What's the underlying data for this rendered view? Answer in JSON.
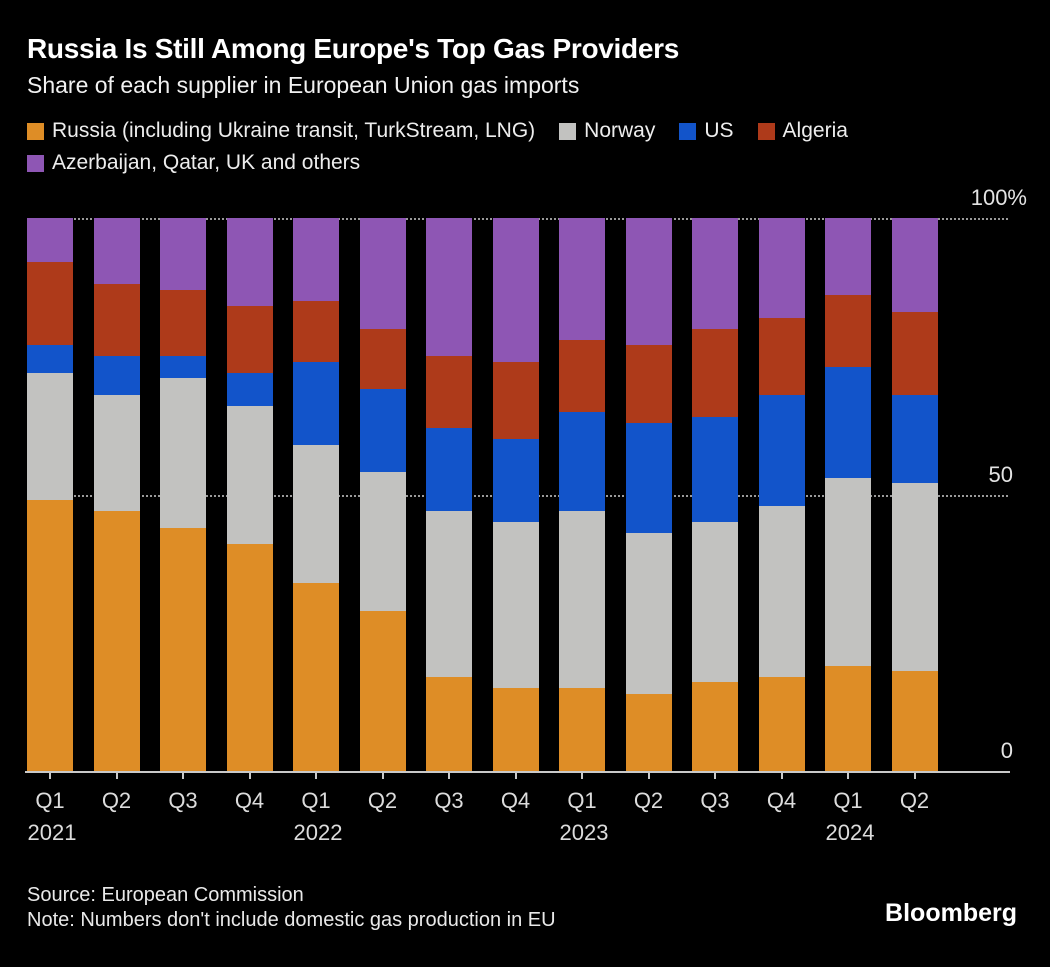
{
  "header": {
    "title": "Russia Is Still Among Europe's Top Gas Providers",
    "subtitle": "Share of each supplier in European Union gas imports"
  },
  "footer": {
    "source": "Source: European Commission",
    "note": "Note: Numbers don't include domestic gas production in EU",
    "brand": "Bloomberg"
  },
  "colors": {
    "background": "#000000",
    "russia": "#DE8D26",
    "norway": "#C2C2C0",
    "us": "#1254CA",
    "algeria": "#AE3A1A",
    "others": "#8E56B4",
    "grid": "#9A9A9A",
    "axis": "#C9C9C9"
  },
  "chart_data": {
    "type": "bar",
    "stacked": true,
    "unit": "%",
    "title": "Russia Is Still Among Europe's Top Gas Providers",
    "subtitle": "Share of each supplier in European Union gas imports",
    "categories": [
      "Q1",
      "Q2",
      "Q3",
      "Q4",
      "Q1",
      "Q2",
      "Q3",
      "Q4",
      "Q1",
      "Q2",
      "Q3",
      "Q4",
      "Q1",
      "Q2"
    ],
    "year_markers": [
      {
        "index": 0,
        "label": "2021"
      },
      {
        "index": 4,
        "label": "2022"
      },
      {
        "index": 8,
        "label": "2023"
      },
      {
        "index": 12,
        "label": "2024"
      }
    ],
    "series": [
      {
        "name": "Russia (including Ukraine transit, TurkStream, LNG)",
        "key": "russia",
        "values": [
          49,
          47,
          44,
          41,
          34,
          29,
          17,
          15,
          15,
          14,
          16,
          17,
          19,
          18
        ]
      },
      {
        "name": "Norway",
        "key": "norway",
        "values": [
          23,
          21,
          27,
          25,
          25,
          25,
          30,
          30,
          32,
          29,
          29,
          31,
          34,
          34
        ]
      },
      {
        "name": "US",
        "key": "us",
        "values": [
          5,
          7,
          4,
          6,
          15,
          15,
          15,
          15,
          18,
          20,
          19,
          20,
          20,
          16
        ]
      },
      {
        "name": "Algeria",
        "key": "algeria",
        "values": [
          15,
          13,
          12,
          12,
          11,
          11,
          13,
          14,
          13,
          14,
          16,
          14,
          13,
          15
        ]
      },
      {
        "name": "Azerbaijan, Qatar, UK and others",
        "key": "others",
        "values": [
          8,
          12,
          13,
          16,
          15,
          20,
          25,
          26,
          22,
          23,
          20,
          18,
          14,
          17
        ]
      }
    ],
    "ylim": [
      0,
      100
    ],
    "yticks": [
      {
        "label": "100%",
        "value": 100
      },
      {
        "label": "50",
        "value": 50
      },
      {
        "label": "0",
        "value": 0
      }
    ],
    "legend_position": "top",
    "grid": "horizontal-dotted"
  }
}
